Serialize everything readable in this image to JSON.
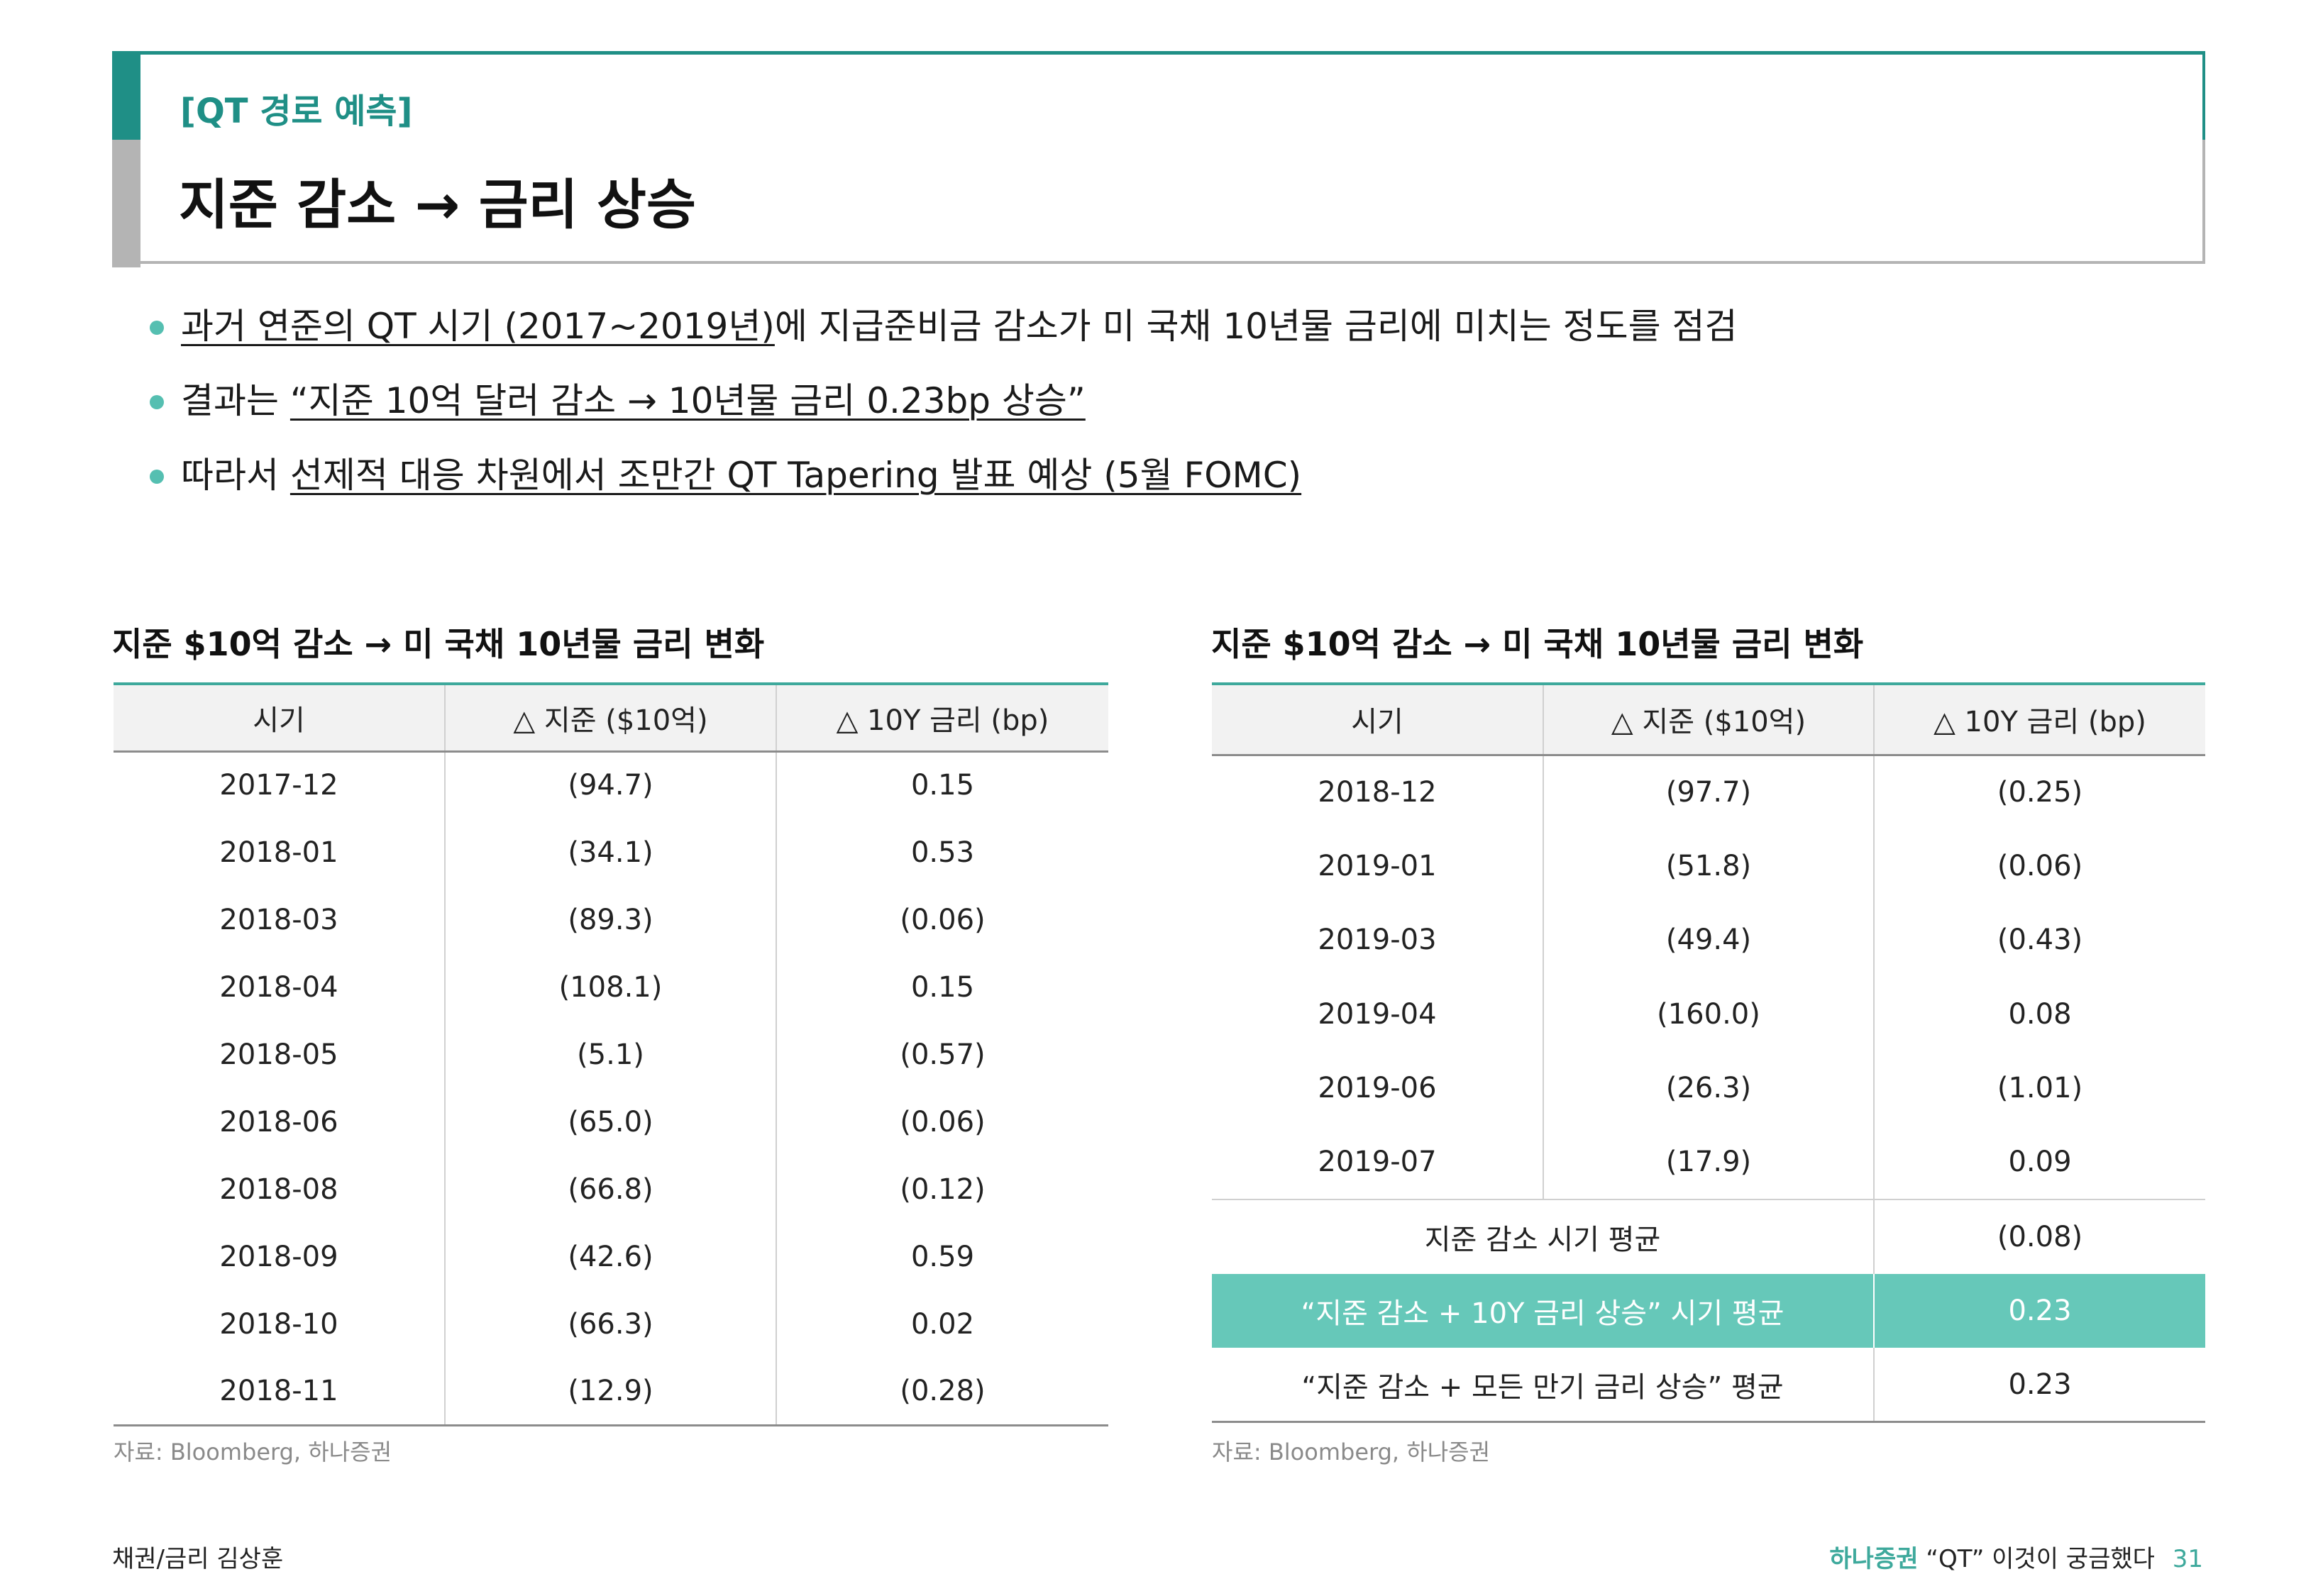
{
  "header": {
    "section_label": "[QT 경로 예측]",
    "title": "지준 감소 → 금리 상승"
  },
  "bullets": [
    {
      "underlined": "과거 연준의 QT 시기 (2017~2019년)",
      "plain_after": "에 지급준비금 감소가 미 국채 10년물 금리에 미치는 정도를 점검"
    },
    {
      "plain_before": "결과는 ",
      "underlined": "“지준 10억 달러 감소 → 10년물 금리 0.23bp 상승”"
    },
    {
      "plain_before": "따라서 ",
      "underlined": "선제적 대응 차원에서 조만간 QT Tapering 발표 예상 (5월 FOMC)"
    }
  ],
  "table_left": {
    "title": "지준 $10억 감소 → 미 국채 10년물 금리 변화",
    "headers": [
      "시기",
      "△ 지준 ($10억)",
      "△ 10Y 금리 (bp)"
    ],
    "rows": [
      [
        "2017-12",
        "(94.7)",
        "0.15"
      ],
      [
        "2018-01",
        "(34.1)",
        "0.53"
      ],
      [
        "2018-03",
        "(89.3)",
        "(0.06)"
      ],
      [
        "2018-04",
        "(108.1)",
        "0.15"
      ],
      [
        "2018-05",
        "(5.1)",
        "(0.57)"
      ],
      [
        "2018-06",
        "(65.0)",
        "(0.06)"
      ],
      [
        "2018-08",
        "(66.8)",
        "(0.12)"
      ],
      [
        "2018-09",
        "(42.6)",
        "0.59"
      ],
      [
        "2018-10",
        "(66.3)",
        "0.02"
      ],
      [
        "2018-11",
        "(12.9)",
        "(0.28)"
      ]
    ],
    "source": "자료: Bloomberg, 하나증권"
  },
  "table_right": {
    "title": "지준 $10억 감소 → 미 국채 10년물 금리 변화",
    "headers": [
      "시기",
      "△ 지준 ($10억)",
      "△ 10Y 금리 (bp)"
    ],
    "rows": [
      [
        "2018-12",
        "(97.7)",
        "(0.25)"
      ],
      [
        "2019-01",
        "(51.8)",
        "(0.06)"
      ],
      [
        "2019-03",
        "(49.4)",
        "(0.43)"
      ],
      [
        "2019-04",
        "(160.0)",
        "0.08"
      ],
      [
        "2019-06",
        "(26.3)",
        "(1.01)"
      ],
      [
        "2019-07",
        "(17.9)",
        "0.09"
      ]
    ],
    "summary": [
      {
        "label": "지준 감소 시기 평균",
        "value": "(0.08)"
      },
      {
        "label": "“지준 감소 + 10Y 금리 상승” 시기 평균",
        "value": "0.23"
      },
      {
        "label": "“지준 감소 + 모든 만기 금리 상승” 평균",
        "value": "0.23"
      }
    ],
    "source": "자료: Bloomberg, 하나증권"
  },
  "footer": {
    "left": "채권/금리 김상훈",
    "brand": "하나증권",
    "doc_title": "“QT” 이것이 궁금했다",
    "page_number": "31"
  },
  "colors": {
    "accent": "#1f8f86",
    "highlight": "#66c8b9",
    "bullet": "#55bfb1"
  }
}
